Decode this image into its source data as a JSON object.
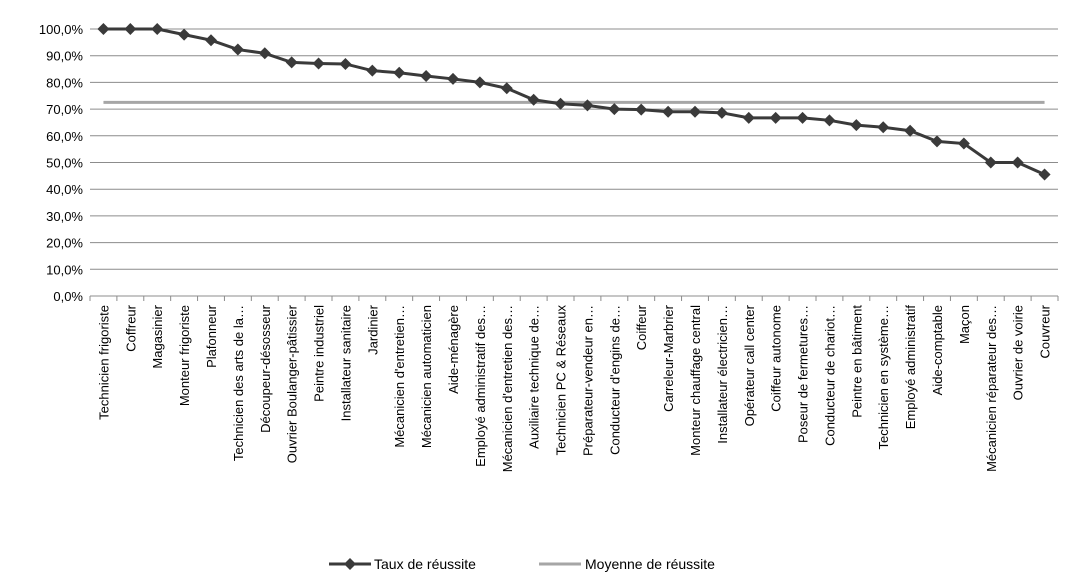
{
  "chart_data": {
    "type": "line",
    "title": "",
    "xlabel": "",
    "ylabel": "",
    "ylim": [
      0,
      100
    ],
    "y_tick_labels": [
      "0,0%",
      "10,0%",
      "20,0%",
      "30,0%",
      "40,0%",
      "50,0%",
      "60,0%",
      "70,0%",
      "80,0%",
      "90,0%",
      "100,0%"
    ],
    "grid": true,
    "legend_position": "bottom",
    "categories": [
      "Technicien frigoriste",
      "Coffreur",
      "Magasinier",
      "Monteur frigoriste",
      "Plafonneur",
      "Technicien des arts de la…",
      "Découpeur-désosseur",
      "Ouvrier Boulanger-pâtissier",
      "Peintre industriel",
      "Installateur sanitaire",
      "Jardinier",
      "Mécanicien d'entretien…",
      "Mécanicien automaticien",
      "Aide-ménagère",
      "Employé administratif des…",
      "Mécanicien d'entretien des…",
      "Auxiliaire technique de…",
      "Technicien PC & Réseaux",
      "Préparateur-vendeur en…",
      "Conducteur d'engins de…",
      "Coiffeur",
      "Carreleur-Marbrier",
      "Monteur chauffage central",
      "Installateur électricien…",
      "Opérateur call center",
      "Coiffeur autonome",
      "Poseur de fermetures…",
      "Conducteur de chariot…",
      "Peintre en bâtiment",
      "Technicien en système…",
      "Employé administratif",
      "Aide-comptable",
      "Maçon",
      "Mécanicien réparateur des…",
      "Ouvrier de voirie",
      "Couvreur"
    ],
    "series": [
      {
        "name": "Taux de réussite",
        "color": "#3a3a3a",
        "marker": "diamond",
        "values": [
          100,
          100,
          100,
          97.9,
          95.8,
          92.3,
          90.9,
          87.5,
          87.1,
          86.9,
          84.4,
          83.6,
          82.4,
          81.3,
          80.0,
          77.8,
          73.5,
          72.0,
          71.4,
          70.0,
          69.8,
          69.0,
          69.0,
          68.6,
          66.7,
          66.7,
          66.7,
          65.8,
          64.0,
          63.2,
          61.9,
          57.9,
          57.1,
          50.0,
          50.0,
          45.5
        ]
      },
      {
        "name": "Moyenne de réussite",
        "color": "#a6a6a6",
        "values": [
          72.5,
          72.5,
          72.5,
          72.5,
          72.5,
          72.5,
          72.5,
          72.5,
          72.5,
          72.5,
          72.5,
          72.5,
          72.5,
          72.5,
          72.5,
          72.5,
          72.5,
          72.5,
          72.5,
          72.5,
          72.5,
          72.5,
          72.5,
          72.5,
          72.5,
          72.5,
          72.5,
          72.5,
          72.5,
          72.5,
          72.5,
          72.5,
          72.5,
          72.5,
          72.5,
          72.5
        ]
      }
    ]
  }
}
